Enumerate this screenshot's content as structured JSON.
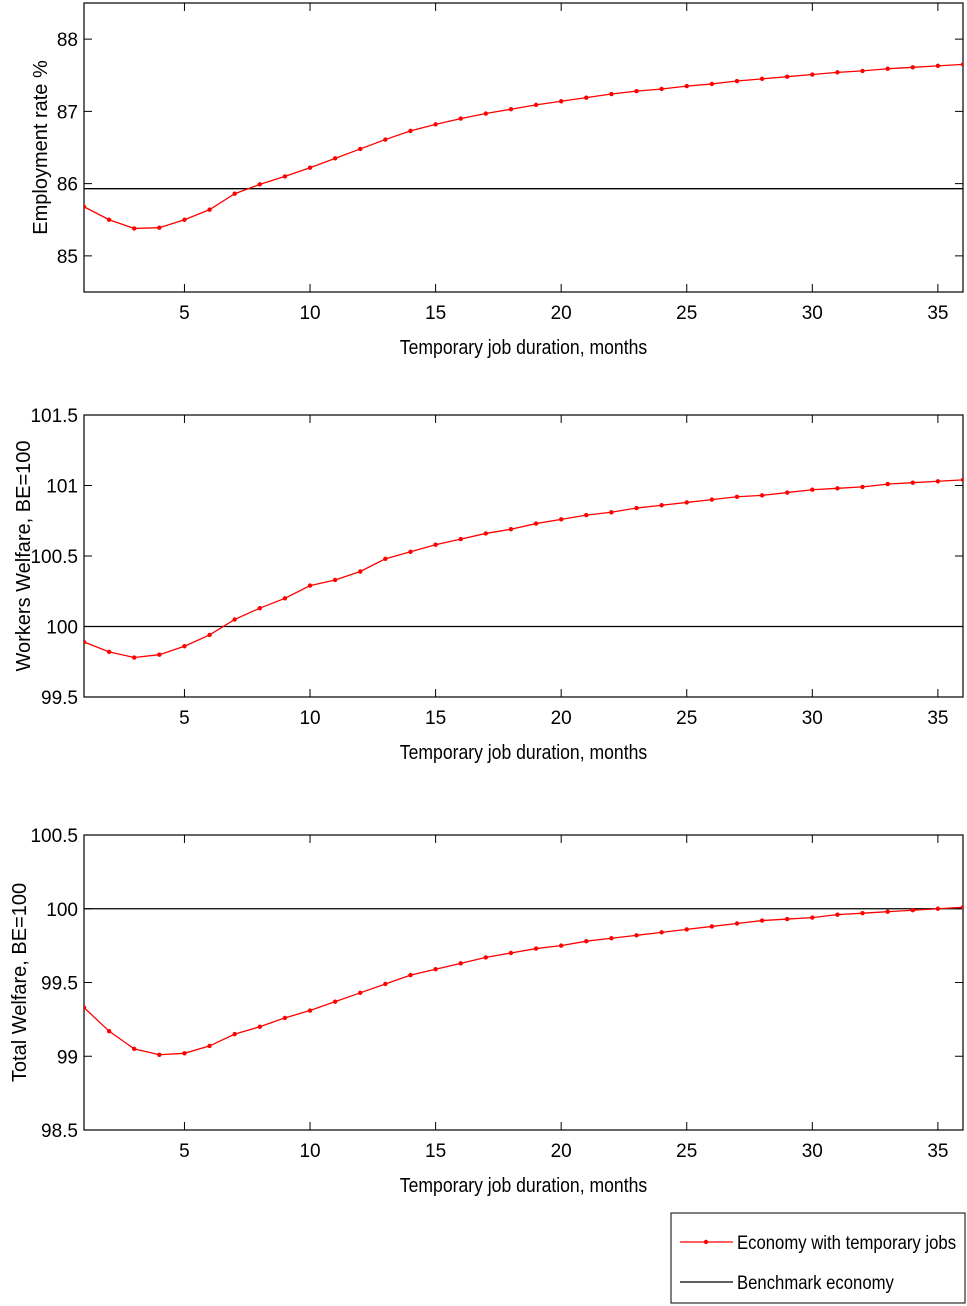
{
  "colors": {
    "series": "#ff0000",
    "benchmark": "#000000",
    "axis": "#000000"
  },
  "legend": {
    "placement": "bottom-right",
    "entries": [
      {
        "label": "Economy with temporary jobs",
        "color": "#ff0000",
        "marker": "dot"
      },
      {
        "label": "Benchmark economy",
        "color": "#000000",
        "marker": "none"
      }
    ]
  },
  "chart_data": [
    {
      "type": "line",
      "xlabel": "Temporary job duration, months",
      "ylabel": "Employment rate %",
      "xlim": [
        1,
        36
      ],
      "ylim": [
        84.5,
        88.5
      ],
      "xticks": [
        5,
        10,
        15,
        20,
        25,
        30,
        35
      ],
      "yticks": [
        85,
        86,
        87,
        88
      ],
      "ytick_labels": [
        "85",
        "86",
        "87",
        "88"
      ],
      "grid": false,
      "x": [
        1,
        2,
        3,
        4,
        5,
        6,
        7,
        8,
        9,
        10,
        11,
        12,
        13,
        14,
        15,
        16,
        17,
        18,
        19,
        20,
        21,
        22,
        23,
        24,
        25,
        26,
        27,
        28,
        29,
        30,
        31,
        32,
        33,
        34,
        35,
        36
      ],
      "series": [
        {
          "name": "Economy with temporary jobs",
          "values": [
            85.68,
            85.5,
            85.38,
            85.39,
            85.5,
            85.64,
            85.86,
            85.99,
            86.1,
            86.22,
            86.35,
            86.48,
            86.61,
            86.73,
            86.82,
            86.9,
            86.97,
            87.03,
            87.09,
            87.14,
            87.19,
            87.24,
            87.28,
            87.31,
            87.35,
            87.38,
            87.42,
            87.45,
            87.48,
            87.51,
            87.54,
            87.56,
            87.59,
            87.61,
            87.63,
            87.65
          ]
        },
        {
          "name": "Benchmark economy",
          "values": [
            85.93,
            85.93
          ],
          "x": [
            1,
            36
          ]
        }
      ]
    },
    {
      "type": "line",
      "xlabel": "Temporary job duration, months",
      "ylabel": "Workers Welfare, BE=100",
      "xlim": [
        1,
        36
      ],
      "ylim": [
        99.5,
        101.5
      ],
      "xticks": [
        5,
        10,
        15,
        20,
        25,
        30,
        35
      ],
      "yticks": [
        99.5,
        100,
        100.5,
        101,
        101.5
      ],
      "ytick_labels": [
        "99.5",
        "100",
        "100.5",
        "101",
        "101.5"
      ],
      "grid": false,
      "x": [
        1,
        2,
        3,
        4,
        5,
        6,
        7,
        8,
        9,
        10,
        11,
        12,
        13,
        14,
        15,
        16,
        17,
        18,
        19,
        20,
        21,
        22,
        23,
        24,
        25,
        26,
        27,
        28,
        29,
        30,
        31,
        32,
        33,
        34,
        35,
        36
      ],
      "series": [
        {
          "name": "Economy with temporary jobs",
          "values": [
            99.89,
            99.82,
            99.78,
            99.8,
            99.86,
            99.94,
            100.05,
            100.13,
            100.2,
            100.29,
            100.33,
            100.39,
            100.48,
            100.53,
            100.58,
            100.62,
            100.66,
            100.69,
            100.73,
            100.76,
            100.79,
            100.81,
            100.84,
            100.86,
            100.88,
            100.9,
            100.92,
            100.93,
            100.95,
            100.97,
            100.98,
            100.99,
            101.01,
            101.02,
            101.03,
            101.04
          ]
        },
        {
          "name": "Benchmark economy",
          "values": [
            100,
            100
          ],
          "x": [
            1,
            36
          ]
        }
      ]
    },
    {
      "type": "line",
      "xlabel": "Temporary job duration, months",
      "ylabel": "Total Welfare, BE=100",
      "xlim": [
        1,
        36
      ],
      "ylim": [
        98.5,
        100.5
      ],
      "xticks": [
        5,
        10,
        15,
        20,
        25,
        30,
        35
      ],
      "yticks": [
        98.5,
        99,
        99.5,
        100,
        100.5
      ],
      "ytick_labels": [
        "98.5",
        "99",
        "99.5",
        "100",
        "100.5"
      ],
      "grid": false,
      "x": [
        1,
        2,
        3,
        4,
        5,
        6,
        7,
        8,
        9,
        10,
        11,
        12,
        13,
        14,
        15,
        16,
        17,
        18,
        19,
        20,
        21,
        22,
        23,
        24,
        25,
        26,
        27,
        28,
        29,
        30,
        31,
        32,
        33,
        34,
        35,
        36
      ],
      "series": [
        {
          "name": "Economy with temporary jobs",
          "values": [
            99.33,
            99.17,
            99.05,
            99.01,
            99.02,
            99.07,
            99.15,
            99.2,
            99.26,
            99.31,
            99.37,
            99.43,
            99.49,
            99.55,
            99.59,
            99.63,
            99.67,
            99.7,
            99.73,
            99.75,
            99.78,
            99.8,
            99.82,
            99.84,
            99.86,
            99.88,
            99.9,
            99.92,
            99.93,
            99.94,
            99.96,
            99.97,
            99.98,
            99.99,
            100.0,
            100.01
          ]
        },
        {
          "name": "Benchmark economy",
          "values": [
            100,
            100
          ],
          "x": [
            1,
            36
          ]
        }
      ]
    }
  ]
}
